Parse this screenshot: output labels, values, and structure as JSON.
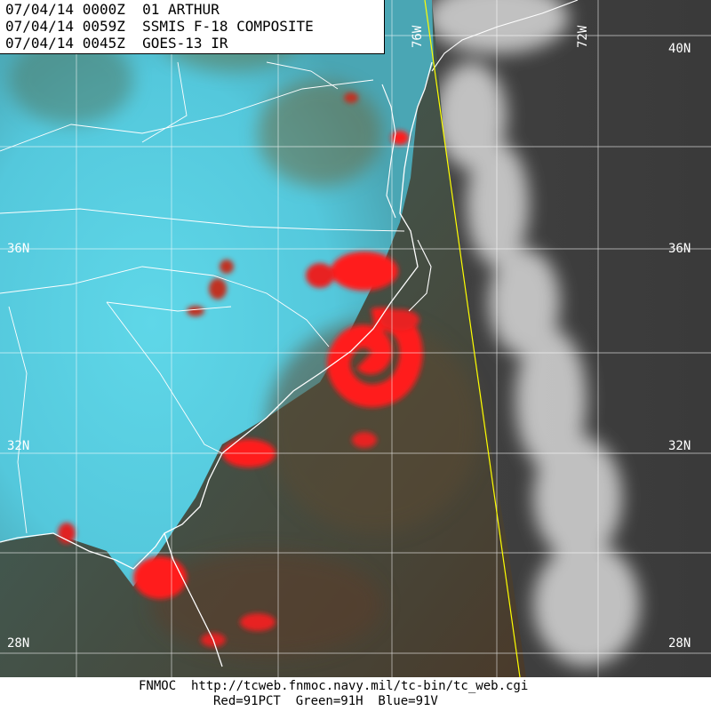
{
  "header": {
    "line1": "07/04/14 0000Z  01 ARTHUR",
    "line2": "07/04/14 0059Z  SSMIS F-18 COMPOSITE",
    "line3": "07/04/14 0045Z  GOES-13 IR"
  },
  "lat_labels": [
    "40N",
    "36N",
    "36N",
    "32N",
    "32N",
    "28N",
    "28N"
  ],
  "lon_labels": [
    "76W",
    "72W"
  ],
  "footer": {
    "line1": "FNMOC  http://tcweb.fnmoc.navy.mil/tc-bin/tc_web.cgi",
    "line2": "Red=91PCT  Green=91H  Blue=91V"
  }
}
